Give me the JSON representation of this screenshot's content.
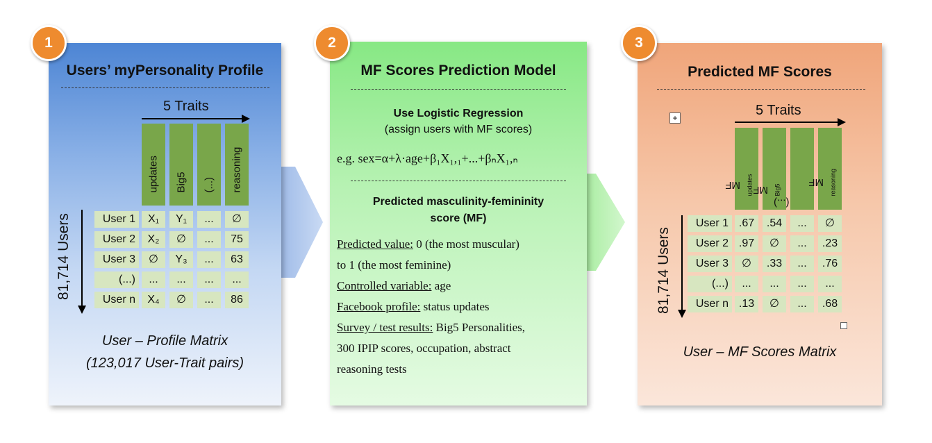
{
  "colors": {
    "badge": "#ee8b2f",
    "header_green": "#79a64a",
    "cell_green": "#d7e6c0"
  },
  "panel1": {
    "badge": "1",
    "title": "Users’ myPersonality Profile",
    "traits_label": "5 Traits",
    "users_label": "81,714 Users",
    "columns": [
      "updates",
      "Big5",
      "(...)",
      "reasoning"
    ],
    "rows": [
      {
        "user": "User 1",
        "c": [
          "X₁",
          "Y₁",
          "...",
          "∅"
        ]
      },
      {
        "user": "User 2",
        "c": [
          "X₂",
          "∅",
          "...",
          "75"
        ]
      },
      {
        "user": "User 3",
        "c": [
          "∅",
          "Y₃",
          "...",
          "63"
        ]
      },
      {
        "user": "(...)",
        "c": [
          "...",
          "...",
          "...",
          "..."
        ]
      },
      {
        "user": "User n",
        "c": [
          "X₄",
          "∅",
          "...",
          "86"
        ]
      }
    ],
    "caption_1": "User – Profile Matrix",
    "caption_2": "(123,017 User-Trait pairs)"
  },
  "panel2": {
    "badge": "2",
    "title": "MF Scores Prediction Model",
    "method_title": "Use Logistic Regression",
    "method_sub": "(assign users with MF scores)",
    "formula": "e.g. sex=α+λ·age+β₁X₁,₁+...+βₙX₁,ₙ",
    "score_title_1": "Predicted masculinity-femininity",
    "score_title_2": "score (MF)",
    "lines": [
      {
        "label": "Predicted value:",
        "text": " 0 (the most muscular)"
      },
      {
        "label": "",
        "text": "to 1 (the most feminine)"
      },
      {
        "label": "Controlled variable:",
        "text": " age"
      },
      {
        "label": "Facebook profile:",
        "text": " status updates"
      },
      {
        "label": "Survey / test results:",
        "text": " Big5 Personalities,"
      },
      {
        "label": "",
        "text": "300 IPIP scores, occupation,  abstract"
      },
      {
        "label": "",
        "text": "reasoning tests"
      }
    ]
  },
  "panel3": {
    "badge": "3",
    "title": "Predicted MF Scores",
    "traits_label": "5 Traits",
    "users_label": "81,714 Users",
    "columns": [
      {
        "main": "MF",
        "sub": "updates"
      },
      {
        "main": "MF",
        "sub": "Big5"
      },
      {
        "main": "(...)",
        "sub": ""
      },
      {
        "main": "MF",
        "sub": "reasoning"
      }
    ],
    "rows": [
      {
        "user": "User 1",
        "c": [
          ".67",
          ".54",
          "...",
          "∅"
        ]
      },
      {
        "user": "User 2",
        "c": [
          ".97",
          "∅",
          "...",
          ".23"
        ]
      },
      {
        "user": "User 3",
        "c": [
          "∅",
          ".33",
          "...",
          ".76"
        ]
      },
      {
        "user": "(...)",
        "c": [
          "...",
          "...",
          "...",
          "..."
        ]
      },
      {
        "user": "User n",
        "c": [
          ".13",
          "∅",
          "...",
          ".68"
        ]
      }
    ],
    "caption": "User – MF Scores Matrix"
  }
}
